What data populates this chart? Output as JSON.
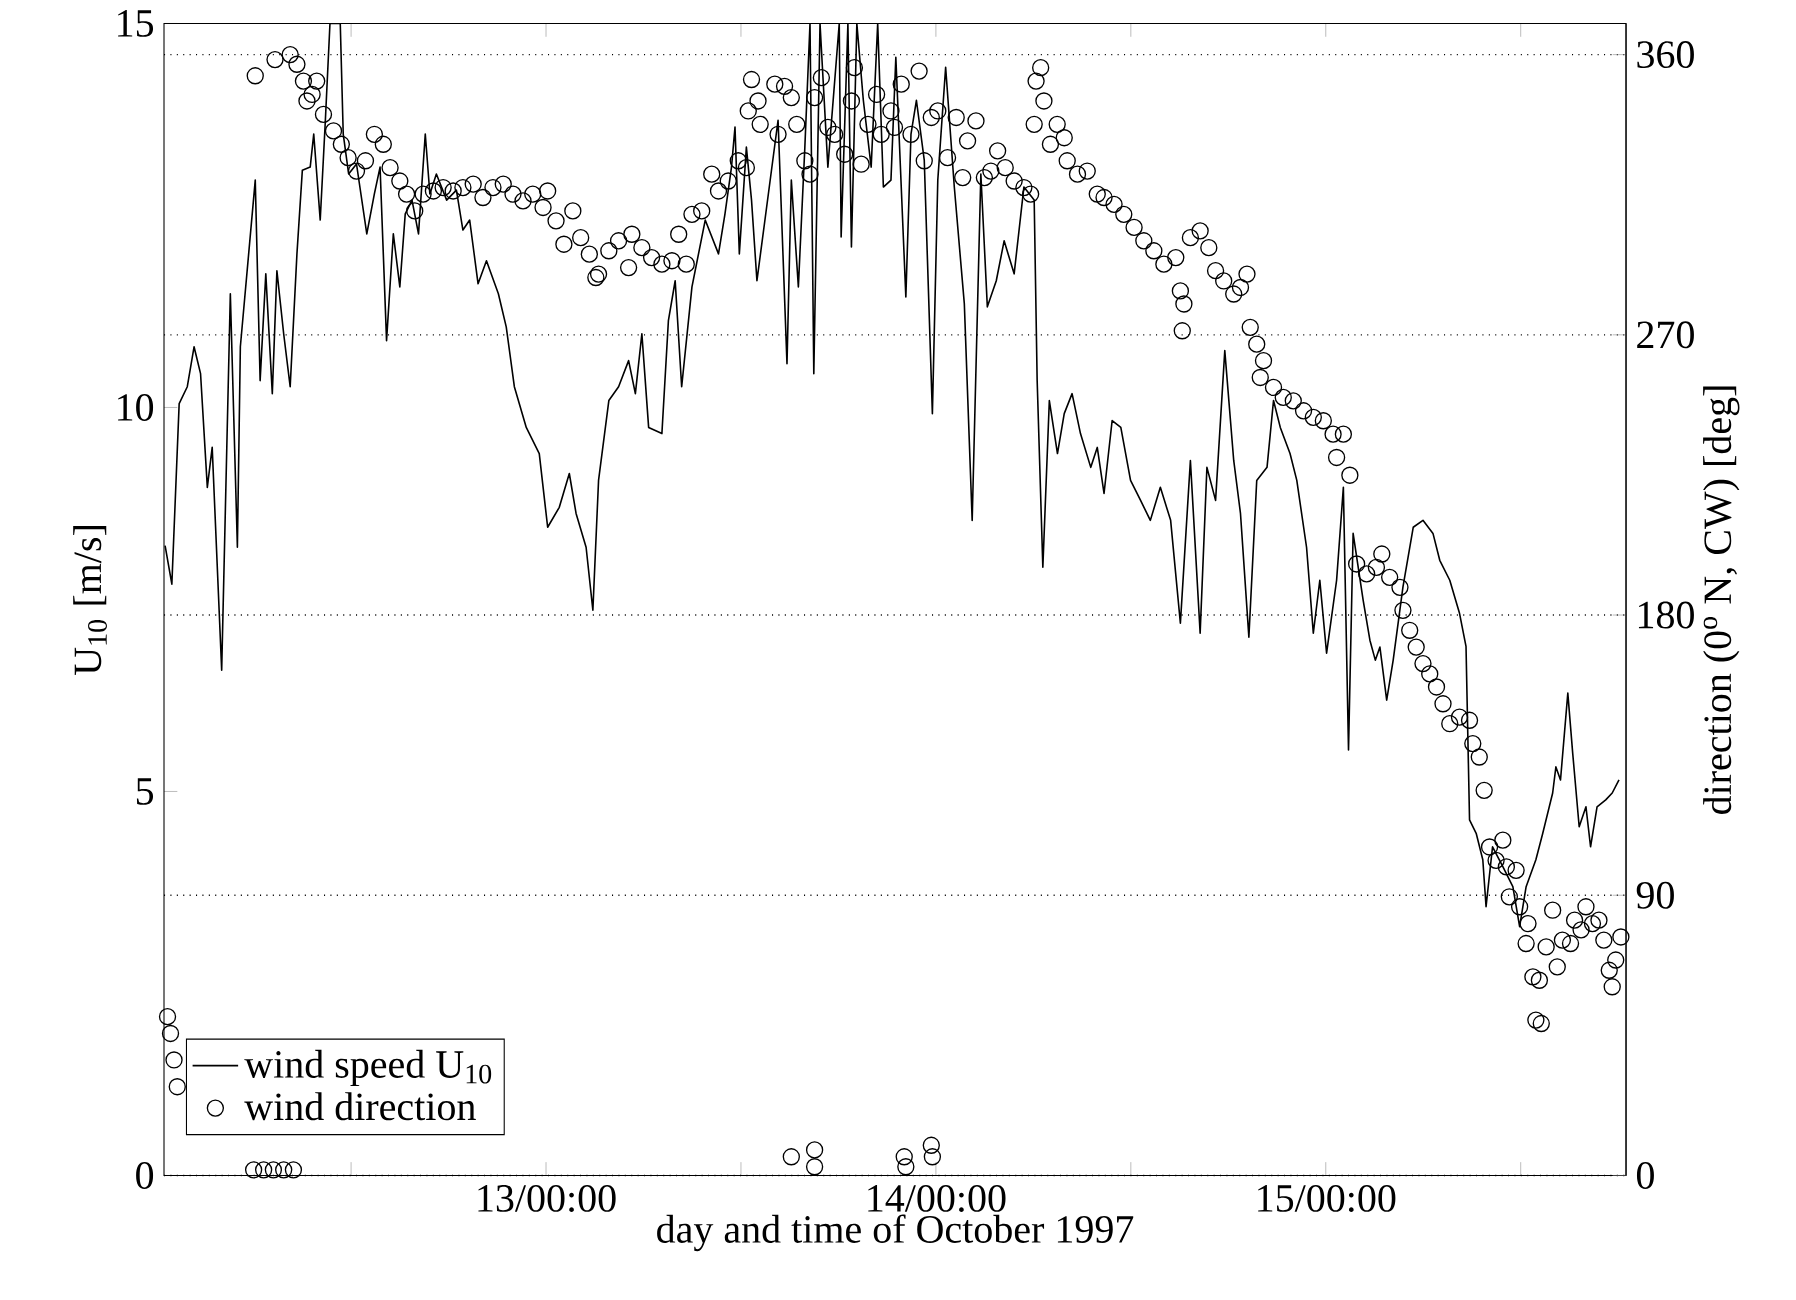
{
  "chart_data": {
    "type": "line",
    "xlabel": "day and time of October 1997",
    "ylabel": "U$_{10}$ [m/s]",
    "y2label": "direction (0$^{o}$ N, CW) [deg]",
    "xlim": [
      "1997-10-12T00:29",
      "1997-10-15T18:29"
    ],
    "ylim": [
      0,
      15
    ],
    "y2lim": [
      0,
      370
    ],
    "xticks": [
      {
        "value": "1997-10-12T12:00",
        "label": null
      },
      {
        "value": "1997-10-13T00:00",
        "label": "13/00:00"
      },
      {
        "value": "1997-10-13T12:00",
        "label": null
      },
      {
        "value": "1997-10-14T00:00",
        "label": "14/00:00"
      },
      {
        "value": "1997-10-14T12:00",
        "label": null
      },
      {
        "value": "1997-10-15T00:00",
        "label": "15/00:00"
      },
      {
        "value": "1997-10-15T12:00",
        "label": null
      }
    ],
    "yticks": [
      0,
      5,
      10,
      15
    ],
    "y2ticks": [
      0,
      90,
      180,
      270,
      360
    ],
    "grid": "y",
    "legend": "bottom left",
    "series": [
      {
        "name": "wind speed U$_{10}$",
        "type": "line",
        "color": "#000000",
        "marker": "none",
        "line_style": "solid",
        "x": [
          "1997-10-12T00:33",
          "1997-10-12T00:58",
          "1997-10-12T01:25",
          "1997-10-12T01:55",
          "1997-10-12T02:20",
          "1997-10-12T02:44",
          "1997-10-12T03:09",
          "1997-10-12T03:27",
          "1997-10-12T04:02",
          "1997-10-12T04:34",
          "1997-10-12T05:00",
          "1997-10-12T05:11",
          "1997-10-12T06:06",
          "1997-10-12T06:24",
          "1997-10-12T06:45",
          "1997-10-12T07:09",
          "1997-10-12T07:26",
          "1997-10-12T07:51",
          "1997-10-12T08:15",
          "1997-10-12T08:40",
          "1997-10-12T09:00",
          "1997-10-12T09:29",
          "1997-10-12T09:42",
          "1997-10-12T10:06",
          "1997-10-12T10:25",
          "1997-10-12T10:42",
          "1997-10-12T11:20",
          "1997-10-12T11:31",
          "1997-10-12T11:51",
          "1997-10-12T12:20",
          "1997-10-12T12:58",
          "1997-10-12T13:26",
          "1997-10-12T13:47",
          "1997-10-12T14:11",
          "1997-10-12T14:36",
          "1997-10-12T15:00",
          "1997-10-12T15:20",
          "1997-10-12T15:45",
          "1997-10-12T16:09",
          "1997-10-12T16:34",
          "1997-10-12T16:51",
          "1997-10-12T17:15",
          "1997-10-12T17:53",
          "1997-10-12T18:29",
          "1997-10-12T18:53",
          "1997-10-12T19:18",
          "1997-10-12T19:49",
          "1997-10-12T20:20",
          "1997-10-12T21:04",
          "1997-10-12T21:33",
          "1997-10-12T22:03",
          "1997-10-12T22:47",
          "1997-10-12T23:35",
          "1997-10-13T00:06",
          "1997-10-13T00:49",
          "1997-10-13T01:26",
          "1997-10-13T01:51",
          "1997-10-13T02:28",
          "1997-10-13T02:53",
          "1997-10-13T03:14",
          "1997-10-13T03:52",
          "1997-10-13T04:28",
          "1997-10-13T05:05",
          "1997-10-13T05:30",
          "1997-10-13T05:54",
          "1997-10-13T06:19",
          "1997-10-13T07:08",
          "1997-10-13T07:32",
          "1997-10-13T07:57",
          "1997-10-13T08:21",
          "1997-10-13T08:59",
          "1997-10-13T09:48",
          "1997-10-13T10:37",
          "1997-10-13T11:01",
          "1997-10-13T11:25",
          "1997-10-13T11:38",
          "1997-10-13T11:54",
          "1997-10-13T12:20",
          "1997-10-13T12:39",
          "1997-10-13T12:59",
          "1997-10-13T14:17",
          "1997-10-13T14:50",
          "1997-10-13T15:06",
          "1997-10-13T15:32",
          "1997-10-13T15:56",
          "1997-10-13T16:15",
          "1997-10-13T16:29",
          "1997-10-13T16:52",
          "1997-10-13T17:21",
          "1997-10-13T18:03",
          "1997-10-13T18:10",
          "1997-10-13T18:35",
          "1997-10-13T18:48",
          "1997-10-13T19:08",
          "1997-10-13T19:32",
          "1997-10-13T20:01",
          "1997-10-13T20:25",
          "1997-10-13T20:46",
          "1997-10-13T21:14",
          "1997-10-13T21:32",
          "1997-10-13T22:09",
          "1997-10-13T22:28",
          "1997-10-13T22:48",
          "1997-10-13T23:17",
          "1997-10-13T23:47",
          "1997-10-14T00:07",
          "1997-10-14T00:36",
          "1997-10-14T01:08",
          "1997-10-14T01:45",
          "1997-10-14T02:14",
          "1997-10-14T02:46",
          "1997-10-14T03:10",
          "1997-10-14T03:43",
          "1997-10-14T04:12",
          "1997-10-14T04:49",
          "1997-10-14T05:25",
          "1997-10-14T06:03",
          "1997-10-14T06:14",
          "1997-10-14T06:35",
          "1997-10-14T06:59",
          "1997-10-14T07:29",
          "1997-10-14T07:54",
          "1997-10-14T08:23",
          "1997-10-14T08:54",
          "1997-10-14T09:32",
          "1997-10-14T09:56",
          "1997-10-14T10:21",
          "1997-10-14T10:51",
          "1997-10-14T11:23",
          "1997-10-14T11:59",
          "1997-10-14T12:36",
          "1997-10-14T13:12",
          "1997-10-14T13:49",
          "1997-10-14T14:27",
          "1997-10-14T15:03",
          "1997-10-14T15:40",
          "1997-10-14T16:16",
          "1997-10-14T16:41",
          "1997-10-14T17:13",
          "1997-10-14T17:47",
          "1997-10-14T18:20",
          "1997-10-14T18:45",
          "1997-10-14T19:16",
          "1997-10-14T19:45",
          "1997-10-14T20:23",
          "1997-10-14T20:47",
          "1997-10-14T21:12",
          "1997-10-14T21:48",
          "1997-10-14T22:13",
          "1997-10-14T22:49",
          "1997-10-14T23:14",
          "1997-10-14T23:38",
          "1997-10-15T00:03",
          "1997-10-15T00:40",
          "1997-10-15T01:05",
          "1997-10-15T01:24",
          "1997-10-15T01:41",
          "1997-10-15T02:18",
          "1997-10-15T02:43",
          "1997-10-15T03:03",
          "1997-10-15T03:20",
          "1997-10-15T03:45",
          "1997-10-15T04:09",
          "1997-10-15T04:45",
          "1997-10-15T05:23",
          "1997-10-15T05:59",
          "1997-10-15T06:36",
          "1997-10-15T07:01",
          "1997-10-15T07:38",
          "1997-10-15T08:14",
          "1997-10-15T08:38",
          "1997-10-15T08:51",
          "1997-10-15T09:16",
          "1997-10-15T09:40",
          "1997-10-15T09:52",
          "1997-10-15T10:16",
          "1997-10-15T10:54",
          "1997-10-15T11:31",
          "1997-10-15T11:56",
          "1997-10-15T12:20",
          "1997-10-15T12:56",
          "1997-10-15T13:21",
          "1997-10-15T13:58",
          "1997-10-15T14:10",
          "1997-10-15T14:27",
          "1997-10-15T14:54",
          "1997-10-15T15:12",
          "1997-10-15T15:36",
          "1997-10-15T16:01",
          "1997-10-15T16:18",
          "1997-10-15T16:42",
          "1997-10-15T17:14",
          "1997-10-15T17:38",
          "1997-10-15T18:03"
        ],
        "values": [
          8.2,
          7.7,
          10.05,
          10.27,
          10.79,
          10.44,
          8.96,
          9.48,
          6.58,
          11.48,
          8.18,
          10.79,
          12.96,
          10.35,
          11.74,
          10.18,
          11.78,
          10.96,
          10.27,
          12.0,
          13.09,
          13.13,
          13.56,
          12.44,
          13.74,
          15.0,
          15.0,
          13.56,
          13.04,
          13.17,
          12.26,
          12.78,
          13.13,
          10.87,
          12.26,
          11.57,
          12.52,
          12.7,
          12.26,
          13.56,
          12.78,
          13.04,
          12.7,
          12.83,
          12.31,
          12.44,
          11.61,
          11.91,
          11.48,
          11.05,
          10.27,
          9.74,
          9.4,
          8.44,
          8.7,
          9.14,
          8.62,
          8.18,
          7.36,
          9.05,
          10.09,
          10.27,
          10.61,
          10.18,
          10.96,
          9.74,
          9.66,
          11.13,
          11.65,
          10.27,
          11.57,
          12.44,
          12.0,
          12.52,
          13.13,
          13.65,
          12.0,
          13.39,
          12.7,
          11.65,
          13.74,
          10.57,
          12.96,
          11.57,
          13.39,
          15.0,
          10.44,
          15.0,
          13.13,
          15.0,
          12.22,
          15.0,
          12.09,
          15.0,
          14.0,
          13.13,
          15.0,
          12.87,
          12.96,
          14.56,
          11.44,
          13.56,
          14.0,
          13.22,
          9.92,
          12.96,
          14.43,
          12.87,
          11.35,
          8.53,
          13.04,
          11.31,
          11.65,
          12.17,
          11.74,
          12.87,
          12.7,
          10.35,
          7.92,
          10.09,
          9.4,
          9.92,
          10.18,
          9.66,
          9.22,
          9.48,
          8.88,
          9.83,
          9.74,
          9.05,
          8.79,
          8.53,
          8.96,
          8.53,
          7.19,
          9.31,
          7.06,
          9.22,
          8.79,
          10.74,
          9.31,
          8.62,
          7.01,
          9.05,
          9.22,
          10.09,
          9.74,
          9.4,
          9.05,
          8.18,
          7.06,
          7.75,
          6.8,
          7.75,
          8.96,
          5.54,
          8.36,
          7.49,
          6.97,
          6.71,
          6.88,
          6.19,
          6.71,
          7.66,
          8.44,
          8.53,
          8.36,
          8.01,
          7.75,
          7.32,
          6.89,
          4.63,
          4.45,
          4.11,
          3.5,
          4.28,
          4.02,
          3.76,
          3.24,
          3.76,
          4.11,
          4.45,
          4.98,
          5.32,
          5.15,
          6.28,
          5.5,
          4.54,
          4.8,
          4.28,
          4.8,
          4.89,
          4.98,
          5.15
        ]
      },
      {
        "name": "wind direction",
        "type": "scatter",
        "axis": "y2",
        "color": "#000000",
        "marker": "circle",
        "x": [
          "1997-10-12T00:42",
          "1997-10-12T00:53",
          "1997-10-12T01:06",
          "1997-10-12T01:18",
          "1997-10-12T06:00",
          "1997-10-12T06:37",
          "1997-10-12T07:13",
          "1997-10-12T07:51",
          "1997-10-12T08:27",
          "1997-10-12T06:06",
          "1997-10-12T07:19",
          "1997-10-12T08:15",
          "1997-10-12T08:40",
          "1997-10-12T09:04",
          "1997-10-12T09:17",
          "1997-10-12T09:36",
          "1997-10-12T09:53",
          "1997-10-12T10:18",
          "1997-10-12T10:55",
          "1997-10-12T11:24",
          "1997-10-12T11:49",
          "1997-10-12T12:20",
          "1997-10-12T12:53",
          "1997-10-12T13:26",
          "1997-10-12T13:59",
          "1997-10-12T14:24",
          "1997-10-12T15:00",
          "1997-10-12T15:25",
          "1997-10-12T15:55",
          "1997-10-12T16:26",
          "1997-10-12T17:04",
          "1997-10-12T17:40",
          "1997-10-12T18:17",
          "1997-10-12T18:53",
          "1997-10-12T19:31",
          "1997-10-12T20:07",
          "1997-10-12T20:44",
          "1997-10-12T21:22",
          "1997-10-12T21:58",
          "1997-10-12T22:35",
          "1997-10-12T23:11",
          "1997-10-12T23:49",
          "1997-10-13T00:06",
          "1997-10-13T00:37",
          "1997-10-13T01:06",
          "1997-10-13T01:39",
          "1997-10-13T02:08",
          "1997-10-13T02:40",
          "1997-10-13T03:04",
          "1997-10-13T03:14",
          "1997-10-13T03:52",
          "1997-10-13T04:28",
          "1997-10-13T05:05",
          "1997-10-13T05:17",
          "1997-10-13T05:54",
          "1997-10-13T06:30",
          "1997-10-13T07:08",
          "1997-10-13T07:45",
          "1997-10-13T08:10",
          "1997-10-13T08:38",
          "1997-10-13T08:59",
          "1997-10-13T09:35",
          "1997-10-13T10:12",
          "1997-10-13T10:37",
          "1997-10-13T11:13",
          "1997-10-13T11:50",
          "1997-10-13T12:20",
          "1997-10-13T12:27",
          "1997-10-13T12:39",
          "1997-10-13T13:03",
          "1997-10-13T13:11",
          "1997-10-13T14:05",
          "1997-10-13T14:17",
          "1997-10-13T14:41",
          "1997-10-13T15:06",
          "1997-10-13T15:26",
          "1997-10-13T15:56",
          "1997-10-13T16:15",
          "1997-10-13T16:32",
          "1997-10-13T16:57",
          "1997-10-13T17:21",
          "1997-10-13T17:46",
          "1997-10-13T18:23",
          "1997-10-13T18:48",
          "1997-10-13T18:59",
          "1997-10-13T19:24",
          "1997-10-13T19:49",
          "1997-10-13T20:21",
          "1997-10-13T20:38",
          "1997-10-13T21:14",
          "1997-10-13T21:27",
          "1997-10-13T21:52",
          "1997-10-13T22:28",
          "1997-10-13T22:58",
          "1997-10-13T23:17",
          "1997-10-13T23:43",
          "1997-10-14T00:07",
          "1997-10-14T00:43",
          "1997-10-14T01:15",
          "1997-10-14T01:39",
          "1997-10-14T01:57",
          "1997-10-14T02:28",
          "1997-10-14T02:59",
          "1997-10-14T03:23",
          "1997-10-14T03:48",
          "1997-10-14T04:16",
          "1997-10-14T04:49",
          "1997-10-14T05:25",
          "1997-10-14T05:50",
          "1997-10-14T06:03",
          "1997-10-14T06:10",
          "1997-10-14T06:27",
          "1997-10-14T06:39",
          "1997-10-14T07:03",
          "1997-10-14T07:28",
          "1997-10-14T07:54",
          "1997-10-14T08:05",
          "1997-10-14T08:43",
          "1997-10-14T09:19",
          "1997-10-14T09:56",
          "1997-10-14T10:21",
          "1997-10-14T10:58",
          "1997-10-14T11:34",
          "1997-10-14T12:12",
          "1997-10-14T12:48",
          "1997-10-14T13:25",
          "1997-10-14T14:02",
          "1997-10-14T14:46",
          "1997-10-14T15:03",
          "1997-10-14T15:16",
          "1997-10-14T15:10",
          "1997-10-14T15:40",
          "1997-10-14T16:16",
          "1997-10-14T16:48",
          "1997-10-14T17:13",
          "1997-10-14T17:43",
          "1997-10-14T18:20",
          "1997-10-14T18:45",
          "1997-10-14T19:09",
          "1997-10-14T19:21",
          "1997-10-14T19:45",
          "1997-10-14T20:10",
          "1997-10-14T19:58",
          "1997-10-14T20:47",
          "1997-10-14T21:23",
          "1997-10-14T22:00",
          "1997-10-14T22:38",
          "1997-10-14T23:14",
          "1997-10-14T23:51",
          "1997-10-15T00:27",
          "1997-10-15T01:05",
          "1997-10-15T00:40",
          "1997-10-15T01:29",
          "1997-10-15T01:54",
          "1997-10-15T02:31",
          "1997-10-15T03:07",
          "1997-10-15T03:27",
          "1997-10-15T03:56",
          "1997-10-15T04:34",
          "1997-10-15T04:45",
          "1997-10-15T05:10",
          "1997-10-15T05:34",
          "1997-10-15T05:59",
          "1997-10-15T06:24",
          "1997-10-15T06:49",
          "1997-10-15T07:13",
          "1997-10-15T07:38",
          "1997-10-15T08:14",
          "1997-10-15T08:51",
          "1997-10-15T09:03",
          "1997-10-15T09:27",
          "1997-10-15T09:45",
          "1997-10-15T10:05",
          "1997-10-15T10:29",
          "1997-10-15T10:54",
          "1997-10-15T11:07",
          "1997-10-15T11:43",
          "1997-10-15T11:18",
          "1997-10-15T11:56",
          "1997-10-15T12:27",
          "1997-10-15T12:20",
          "1997-10-15T12:45",
          "1997-10-15T13:09",
          "1997-10-15T12:56",
          "1997-10-15T13:16",
          "1997-10-15T13:34",
          "1997-10-15T13:58",
          "1997-10-15T14:15",
          "1997-10-15T14:34",
          "1997-10-15T15:04",
          "1997-10-15T15:19",
          "1997-10-15T15:43",
          "1997-10-15T16:01",
          "1997-10-15T16:25",
          "1997-10-15T16:49",
          "1997-10-15T17:07",
          "1997-10-15T17:27",
          "1997-10-15T17:38",
          "1997-10-15T17:51",
          "1997-10-15T18:10",
          "1997-10-13T15:06",
          "1997-10-13T16:32",
          "1997-10-13T16:32",
          "1997-10-13T22:03",
          "1997-10-13T22:09",
          "1997-10-13T23:43",
          "1997-10-13T23:47"
        ],
        "values": [
          51.0,
          45.6,
          37.1,
          28.5,
          1.8,
          1.8,
          1.8,
          1.8,
          1.8,
          353.2,
          358.4,
          360,
          356.9,
          351.5,
          345.1,
          347.2,
          351.5,
          340.8,
          335.5,
          331.2,
          326.9,
          322.6,
          325.9,
          334.4,
          331.2,
          323.7,
          319.4,
          315.2,
          309.8,
          315.2,
          316.2,
          317.3,
          316.2,
          317.3,
          318.4,
          314.1,
          317.3,
          318.4,
          315.2,
          313.0,
          315.2,
          310.9,
          316.2,
          306.6,
          299.1,
          309.8,
          301.2,
          295.9,
          288.4,
          289.5,
          297.0,
          300.2,
          291.6,
          302.3,
          298.0,
          294.8,
          292.7,
          293.8,
          302.3,
          292.7,
          308.7,
          309.8,
          321.6,
          316.2,
          319.4,
          325.9,
          323.7,
          341.9,
          352.0,
          345.1,
          337.6,
          350.5,
          334.4,
          349.8,
          346.2,
          337.6,
          325.9,
          321.6,
          346.2,
          352.6,
          336.6,
          334.4,
          328.0,
          345.1,
          355.8,
          324.8,
          337.6,
          347.2,
          334.4,
          341.9,
          336.6,
          350.5,
          334.4,
          354.7,
          325.9,
          339.8,
          341.9,
          326.9,
          339.8,
          320.5,
          332.3,
          338.7,
          320.5,
          322.6,
          329.1,
          323.7,
          319.4,
          317.3,
          315.2,
          337.6,
          351.5,
          355.8,
          345.1,
          331.2,
          337.6,
          333.3,
          325.9,
          321.6,
          322.6,
          315.2,
          314.1,
          311.9,
          308.7,
          304.5,
          300.2,
          297.0,
          292.7,
          294.8,
          284.1,
          279.9,
          271.3,
          301.2,
          303.4,
          298.0,
          290.6,
          287.3,
          283.1,
          285.2,
          289.5,
          272.4,
          267.0,
          261.7,
          256.3,
          253.1,
          249.9,
          248.8,
          245.6,
          243.5,
          242.4,
          238.1,
          238.1,
          230.6,
          224.9,
          196.4,
          193.2,
          195.3,
          199.6,
          192.1,
          188.9,
          181.5,
          175.1,
          169.7,
          164.4,
          161.1,
          156.9,
          151.5,
          145.1,
          147.2,
          146.2,
          138.7,
          134.4,
          123.7,
          105.5,
          101.2,
          107.7,
          99.1,
          98.0,
          89.5,
          86.3,
          80.9,
          74.5,
          63.8,
          62.7,
          49.9,
          48.8,
          73.4,
          85.2,
          67.0,
          75.6,
          74.5,
          82.0,
          78.9,
          86.3,
          80.9,
          82.0,
          75.6,
          65.9,
          60.6,
          69.2,
          76.6,
          6.0,
          8.2,
          2.8,
          6.0,
          2.8,
          9.7,
          6.0
        ]
      }
    ]
  }
}
